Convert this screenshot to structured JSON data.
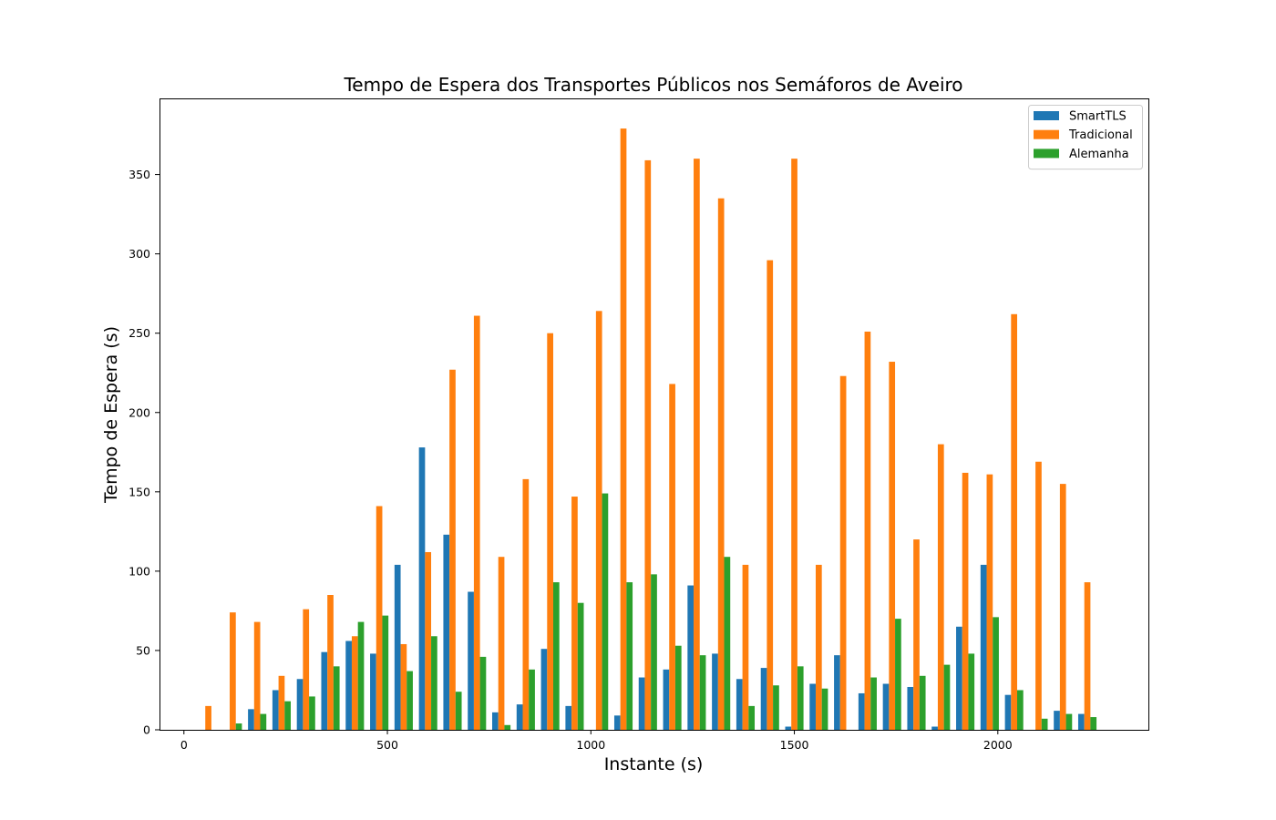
{
  "chart_data": {
    "type": "bar",
    "title": "Tempo de Espera dos Transportes Públicos nos Semáforos de Aveiro",
    "xlabel": "Instante (s)",
    "ylabel": "Tempo de Espera (s)",
    "xlim": [
      -60,
      2370
    ],
    "ylim": [
      0,
      398
    ],
    "xticks": [
      0,
      500,
      1000,
      1500,
      2000
    ],
    "yticks": [
      0,
      50,
      100,
      150,
      200,
      250,
      300,
      350
    ],
    "bar_spacing": 60,
    "legend_position": "upper right",
    "x": [
      0,
      60,
      120,
      180,
      240,
      300,
      360,
      420,
      480,
      540,
      600,
      660,
      720,
      780,
      840,
      900,
      960,
      1020,
      1080,
      1140,
      1200,
      1260,
      1320,
      1380,
      1440,
      1500,
      1560,
      1620,
      1680,
      1740,
      1800,
      1860,
      1920,
      1980,
      2040,
      2100,
      2160,
      2220
    ],
    "series": [
      {
        "name": "SmartTLS",
        "color": "#1f77b4",
        "values": [
          0,
          0,
          0,
          13,
          25,
          32,
          49,
          56,
          48,
          104,
          178,
          123,
          87,
          11,
          16,
          51,
          15,
          0,
          9,
          33,
          38,
          91,
          48,
          32,
          39,
          2,
          29,
          47,
          23,
          29,
          27,
          2,
          65,
          104,
          22,
          0,
          12,
          10
        ]
      },
      {
        "name": "Tradicional",
        "color": "#ff7f0e",
        "values": [
          0,
          15,
          74,
          68,
          34,
          76,
          85,
          59,
          141,
          54,
          112,
          227,
          261,
          109,
          158,
          250,
          147,
          264,
          379,
          359,
          218,
          360,
          335,
          104,
          296,
          360,
          104,
          223,
          251,
          232,
          120,
          180,
          162,
          161,
          262,
          169,
          155,
          93
        ]
      },
      {
        "name": "Alemanha",
        "color": "#2ca02c",
        "values": [
          0,
          0,
          4,
          10,
          18,
          21,
          40,
          68,
          72,
          37,
          59,
          24,
          46,
          3,
          38,
          93,
          80,
          149,
          93,
          98,
          53,
          47,
          109,
          15,
          28,
          40,
          26,
          0,
          33,
          70,
          34,
          41,
          48,
          71,
          25,
          7,
          10,
          8
        ]
      }
    ]
  }
}
